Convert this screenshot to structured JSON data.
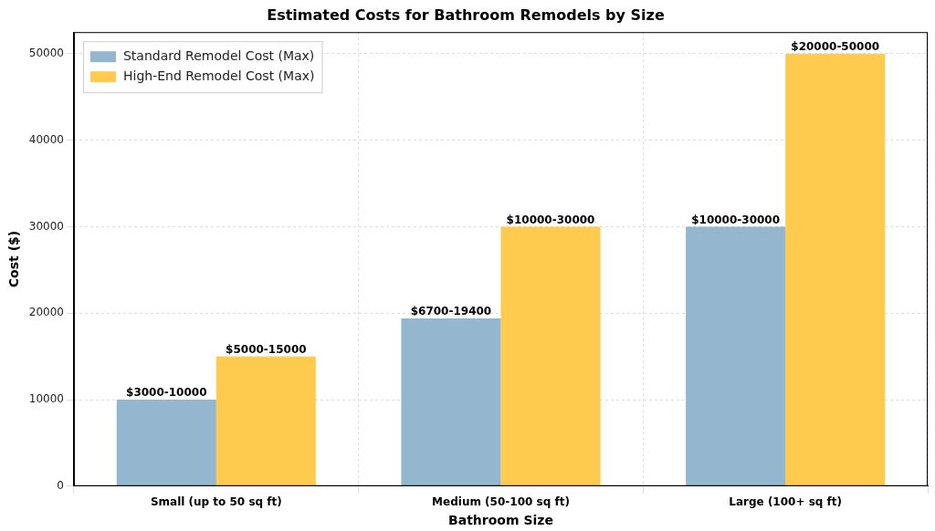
{
  "chart_data": {
    "type": "bar",
    "title": "Estimated Costs for Bathroom Remodels by Size",
    "x_label": "Bathroom Size",
    "y_label": "Cost ($)",
    "categories": [
      "Small (up to 50 sq ft)",
      "Medium (50-100 sq ft)",
      "Large (100+ sq ft)"
    ],
    "series": [
      {
        "name": "Standard Remodel Cost (Max)",
        "color": "#94b6cf",
        "values": [
          10000,
          19400,
          30000
        ],
        "value_labels": [
          "$3000-10000",
          "$6700-19400",
          "$10000-30000"
        ]
      },
      {
        "name": "High-End Remodel Cost (Max)",
        "color": "#ffcb4e",
        "values": [
          15000,
          30000,
          50000
        ],
        "value_labels": [
          "$5000-15000",
          "$10000-30000",
          "$20000-50000"
        ]
      }
    ],
    "ylim": [
      0,
      52500
    ],
    "yticks": [
      0,
      10000,
      20000,
      30000,
      40000,
      50000
    ],
    "grid": true,
    "legend": "upper left",
    "data_labels": true
  }
}
